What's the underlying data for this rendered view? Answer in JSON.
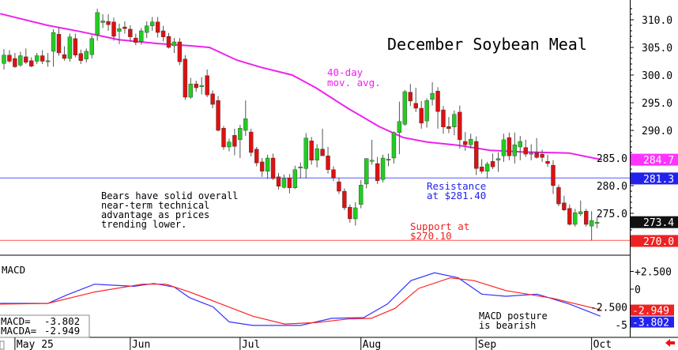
{
  "chart_data": {
    "type": "candlestick",
    "title": "December Soybean Meal",
    "ylim": [
      270,
      312
    ],
    "y_ticks": [
      "310.0",
      "305.0",
      "300.0",
      "295.0",
      "290.0",
      "285.0",
      "280.0",
      "275.0"
    ],
    "x_labels": [
      "May 25",
      "Jun",
      "Jul",
      "Aug",
      "Sep",
      "Oct"
    ],
    "x_label_index": [
      2,
      23,
      43,
      65,
      86,
      107
    ],
    "ohlc": [
      [
        302.1,
        304.7,
        301,
        303.6
      ],
      [
        303.6,
        304.5,
        302.2,
        302.5
      ],
      [
        303,
        304,
        301.3,
        301.5
      ],
      [
        301.8,
        304.2,
        301.5,
        303.5
      ],
      [
        303.3,
        304.8,
        302,
        302.3
      ],
      [
        302.6,
        303.2,
        301.4,
        301.6
      ],
      [
        302.5,
        304,
        302,
        303.5
      ],
      [
        303.5,
        304.5,
        302,
        302.5
      ],
      [
        302.5,
        304,
        301.5,
        302.6
      ],
      [
        304.3,
        308.3,
        301.5,
        307.7
      ],
      [
        307.4,
        308.6,
        303.5,
        304
      ],
      [
        303.7,
        305.2,
        302.6,
        303
      ],
      [
        303,
        307.5,
        302.4,
        306.9
      ],
      [
        306.6,
        307.5,
        303.2,
        303.6
      ],
      [
        303.9,
        304.6,
        302,
        302.6
      ],
      [
        302.9,
        304.8,
        302.3,
        304.3
      ],
      [
        303.7,
        307.2,
        303,
        306.6
      ],
      [
        307.3,
        312,
        306.2,
        311.3
      ],
      [
        309.5,
        311,
        308.5,
        309.8
      ],
      [
        309.7,
        311,
        308,
        309.1
      ],
      [
        309.6,
        310.4,
        306.2,
        307
      ],
      [
        307.9,
        309.3,
        305.6,
        308.4
      ],
      [
        308.7,
        309.7,
        307.5,
        308.4
      ],
      [
        308.3,
        309,
        306,
        306.9
      ],
      [
        306.7,
        307.5,
        305.4,
        305.9
      ],
      [
        306.1,
        308.5,
        305.5,
        308
      ],
      [
        307.7,
        309.7,
        306.7,
        308.9
      ],
      [
        308.9,
        310.5,
        308,
        309.6
      ],
      [
        309.6,
        310.5,
        306.8,
        307.7
      ],
      [
        308,
        308.9,
        306.1,
        306.9
      ],
      [
        307,
        307.6,
        304.8,
        305
      ],
      [
        305.3,
        306.7,
        304,
        306
      ],
      [
        306,
        306.7,
        301.8,
        302.4
      ],
      [
        302.9,
        303.6,
        295.5,
        296
      ],
      [
        296,
        299.5,
        295.7,
        298.4
      ],
      [
        298.4,
        299,
        297,
        297.7
      ],
      [
        298,
        299.6,
        296.5,
        298.1
      ],
      [
        299.9,
        301,
        296,
        296.4
      ],
      [
        296.6,
        297.2,
        294,
        294.7
      ],
      [
        295.4,
        296.2,
        289.8,
        290
      ],
      [
        290.4,
        290.8,
        286.5,
        287
      ],
      [
        287,
        288.5,
        286.2,
        287.9
      ],
      [
        289.1,
        290.3,
        285.5,
        287.1
      ],
      [
        288.3,
        291,
        285,
        290.4
      ],
      [
        290,
        295.4,
        289,
        292.1
      ],
      [
        289.7,
        290.3,
        285.3,
        286
      ],
      [
        286.6,
        287,
        283.5,
        284.1
      ],
      [
        284.3,
        285,
        281.6,
        282.6
      ],
      [
        282.6,
        285.6,
        281.2,
        285
      ],
      [
        285,
        285.8,
        281,
        281.3
      ],
      [
        281.6,
        282.3,
        279.3,
        279.9
      ],
      [
        279.7,
        282,
        279.5,
        281.3
      ],
      [
        281.4,
        282.1,
        278.6,
        279.6
      ],
      [
        279.6,
        283.6,
        279.4,
        282.9
      ],
      [
        283.4,
        284.2,
        281.3,
        283.4
      ],
      [
        283.1,
        289.5,
        281.3,
        288.6
      ],
      [
        288.1,
        288.8,
        283.8,
        284.6
      ],
      [
        284.6,
        287.5,
        283.3,
        286.7
      ],
      [
        286.6,
        290.3,
        285.6,
        285.4
      ],
      [
        285.4,
        287,
        282.2,
        282.9
      ],
      [
        282.9,
        283.5,
        280.8,
        281.4
      ],
      [
        280.7,
        281.4,
        278.5,
        279
      ],
      [
        279,
        279.5,
        275.6,
        276
      ],
      [
        276.1,
        276.6,
        273.3,
        274
      ],
      [
        274,
        277,
        272.8,
        276
      ],
      [
        276.6,
        281,
        275.9,
        280.1
      ],
      [
        280.3,
        285,
        279.5,
        284.9
      ],
      [
        284.6,
        288.3,
        283.8,
        284.6
      ],
      [
        284,
        285.2,
        280.3,
        280.9
      ],
      [
        281.1,
        285.6,
        280.6,
        285
      ],
      [
        284.6,
        285.8,
        283.5,
        284.8
      ],
      [
        285,
        289.8,
        284,
        289.6
      ],
      [
        289.6,
        295.2,
        285.7,
        291.6
      ],
      [
        291.1,
        297.3,
        290.8,
        297
      ],
      [
        296.9,
        298.4,
        294.4,
        295.3
      ],
      [
        294.9,
        297.7,
        293.3,
        294
      ],
      [
        294,
        295.3,
        290.3,
        291.3
      ],
      [
        291.7,
        295.8,
        290.5,
        295.4
      ],
      [
        295.6,
        298.7,
        294.5,
        296.7
      ],
      [
        297.1,
        297.8,
        290.3,
        293.4
      ],
      [
        293.7,
        294.4,
        289.4,
        290.6
      ],
      [
        290.7,
        292.4,
        289.5,
        290.3
      ],
      [
        290.6,
        293.6,
        289.1,
        292.9
      ],
      [
        293.3,
        294.5,
        286.7,
        288.3
      ],
      [
        288,
        289.7,
        286.3,
        287.4
      ],
      [
        287.4,
        289.4,
        286.7,
        288.4
      ],
      [
        288,
        288.9,
        281.9,
        283.1
      ],
      [
        283.4,
        284.8,
        282.2,
        282.6
      ],
      [
        282.6,
        284.3,
        281.3,
        283.9
      ],
      [
        284.4,
        285.8,
        283,
        283.4
      ],
      [
        284.6,
        286,
        282.5,
        284.9
      ],
      [
        285.4,
        289.4,
        284.3,
        288.3
      ],
      [
        288.7,
        289.6,
        284.6,
        285.4
      ],
      [
        285.4,
        289.6,
        284,
        287.4
      ],
      [
        287,
        289,
        284.6,
        288
      ],
      [
        286.9,
        288.3,
        285.2,
        285.7
      ],
      [
        285.8,
        287.5,
        284.6,
        285.9
      ],
      [
        286,
        288.6,
        284.9,
        285.1
      ],
      [
        285.7,
        286.5,
        284.3,
        285.1
      ],
      [
        284.4,
        285.6,
        283.4,
        284
      ],
      [
        283.7,
        284.6,
        278.5,
        280
      ],
      [
        279.7,
        280.2,
        276.3,
        276.7
      ],
      [
        276.9,
        278.2,
        275.4,
        275.6
      ],
      [
        275.9,
        276.6,
        272.8,
        273
      ],
      [
        273,
        275.8,
        272.6,
        275.1
      ],
      [
        274.9,
        277.3,
        274.5,
        275.3
      ],
      [
        275.4,
        275.8,
        272.6,
        273
      ],
      [
        272.7,
        275.4,
        270.1,
        273.7
      ],
      [
        273.4,
        274.3,
        272.3,
        273.4
      ]
    ],
    "moving_average": {
      "label": [
        "40-day",
        "mov. avg."
      ],
      "points": [
        [
          -0.7,
          311.1
        ],
        [
          7.9,
          309
        ],
        [
          13.7,
          307.9
        ],
        [
          20.9,
          306.4
        ],
        [
          28,
          305.7
        ],
        [
          33.8,
          305.3
        ],
        [
          37.4,
          305
        ],
        [
          42.4,
          302.7
        ],
        [
          46.8,
          301.4
        ],
        [
          52.5,
          300
        ],
        [
          56.8,
          297.7
        ],
        [
          62.6,
          294
        ],
        [
          68.3,
          290.7
        ],
        [
          72.7,
          288.7
        ],
        [
          77,
          287.9
        ],
        [
          82.7,
          287.3
        ],
        [
          88.5,
          286.4
        ],
        [
          94.2,
          286.1
        ],
        [
          102.9,
          285.9
        ],
        [
          105.8,
          285.3
        ],
        [
          108.9,
          284.7
        ]
      ]
    },
    "resistance": {
      "value": 281.4,
      "label": [
        "Resistance",
        "at $281.40"
      ]
    },
    "support": {
      "value": 270.1,
      "label": [
        "Support at",
        "$270.10"
      ]
    },
    "note": [
      "Bears have solid overall",
      "near-term technical",
      "advantage as prices",
      "trending lower."
    ],
    "price_boxes": [
      {
        "value": 284.7,
        "text": "284.7",
        "color": "#ff33ff"
      },
      {
        "value": 281.3,
        "text": "281.3",
        "color": "#2222ee"
      },
      {
        "value": 273.4,
        "text": "273.4",
        "color": "#111111"
      },
      {
        "value": 270.0,
        "text": "270.0",
        "color": "#ee2222"
      }
    ],
    "macd": {
      "title": "MACD",
      "ylim": [
        -6,
        3.5
      ],
      "y_ticks": [
        {
          "v": 2.5,
          "t": "+2.500"
        },
        {
          "v": 0,
          "t": "0"
        },
        {
          "v": -2.5,
          "t": "-2.500"
        },
        {
          "v": -5,
          "t": "-5"
        }
      ],
      "macd_line": [
        [
          -0.7,
          -2
        ],
        [
          8,
          -2
        ],
        [
          11.5,
          -0.8
        ],
        [
          16.5,
          0.7
        ],
        [
          23.7,
          0.4
        ],
        [
          27.3,
          0.8
        ],
        [
          31,
          0.3
        ],
        [
          33.8,
          -1.2
        ],
        [
          38.1,
          -2.5
        ],
        [
          41,
          -4.6
        ],
        [
          45.3,
          -5.1
        ],
        [
          54,
          -5.1
        ],
        [
          59.7,
          -4.1
        ],
        [
          65.5,
          -4
        ],
        [
          69.8,
          -2.1
        ],
        [
          74.1,
          1.2
        ],
        [
          78.4,
          2.3
        ],
        [
          82.7,
          1.6
        ],
        [
          87,
          -0.7
        ],
        [
          91.4,
          -1
        ],
        [
          97.1,
          -0.7
        ],
        [
          103,
          -2.1
        ],
        [
          108.6,
          -3.8
        ]
      ],
      "signal_line": [
        [
          -0.7,
          -2.1
        ],
        [
          8,
          -2
        ],
        [
          16.5,
          -0.4
        ],
        [
          25.2,
          0.7
        ],
        [
          29.5,
          0.7
        ],
        [
          33.8,
          -0.4
        ],
        [
          39.6,
          -2.1
        ],
        [
          45.3,
          -3.8
        ],
        [
          51.1,
          -4.9
        ],
        [
          56.8,
          -4.7
        ],
        [
          62.6,
          -4.2
        ],
        [
          66.9,
          -4.1
        ],
        [
          71.2,
          -2.7
        ],
        [
          75.5,
          0.1
        ],
        [
          81.3,
          1.6
        ],
        [
          85.6,
          1.2
        ],
        [
          91.4,
          -0.2
        ],
        [
          100,
          -1.3
        ],
        [
          108.6,
          -2.9
        ]
      ],
      "readout": [
        {
          "label": "MACD=",
          "value": "-3.802"
        },
        {
          "label": "MACDA=",
          "value": "-2.949"
        }
      ],
      "boxes": [
        {
          "value": -2.949,
          "text": "-2.949",
          "color": "#ee2222"
        },
        {
          "value": -3.802,
          "text": "-3.802",
          "color": "#2222ee"
        }
      ],
      "note": [
        "MACD posture",
        "is bearish"
      ]
    }
  }
}
